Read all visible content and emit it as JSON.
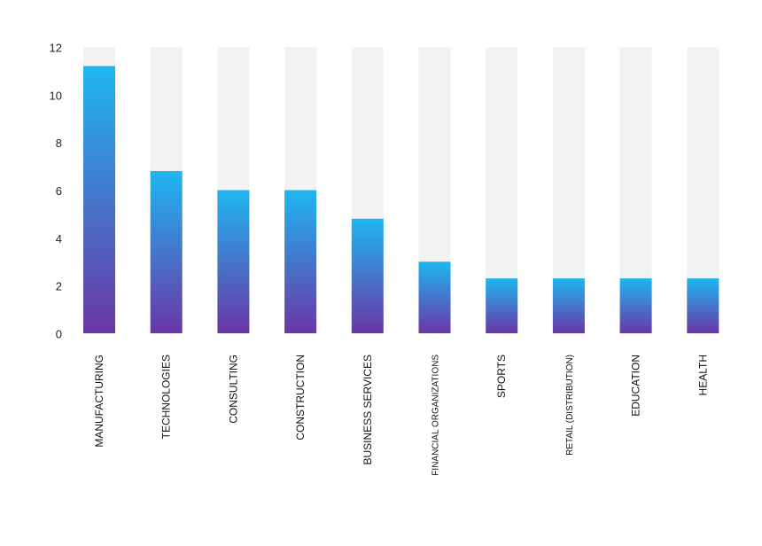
{
  "chart_data": {
    "type": "bar",
    "title": "",
    "xlabel": "",
    "ylabel": "",
    "ylim": [
      0,
      12
    ],
    "yticks": [
      0,
      2,
      4,
      6,
      8,
      10,
      12
    ],
    "grid": false,
    "legend": "none",
    "categories": [
      "MANUFACTURING",
      "TECHNOLOGIES",
      "CONSULTING",
      "CONSTRUCTION",
      "BUSINESS SERVICES",
      "FINANCIAL ORGANIZATIONS",
      "SPORTS",
      "RETAIL (DISTRIBUTION)",
      "EDUCATION",
      "HEALTH"
    ],
    "values": [
      11.2,
      6.8,
      6.0,
      6.0,
      4.8,
      3.0,
      2.3,
      2.3,
      2.3,
      2.3
    ],
    "colors": {
      "bar_top": "#1fb6f0",
      "bar_bottom": "#6a36a6",
      "track": "#f2f2f2"
    }
  }
}
